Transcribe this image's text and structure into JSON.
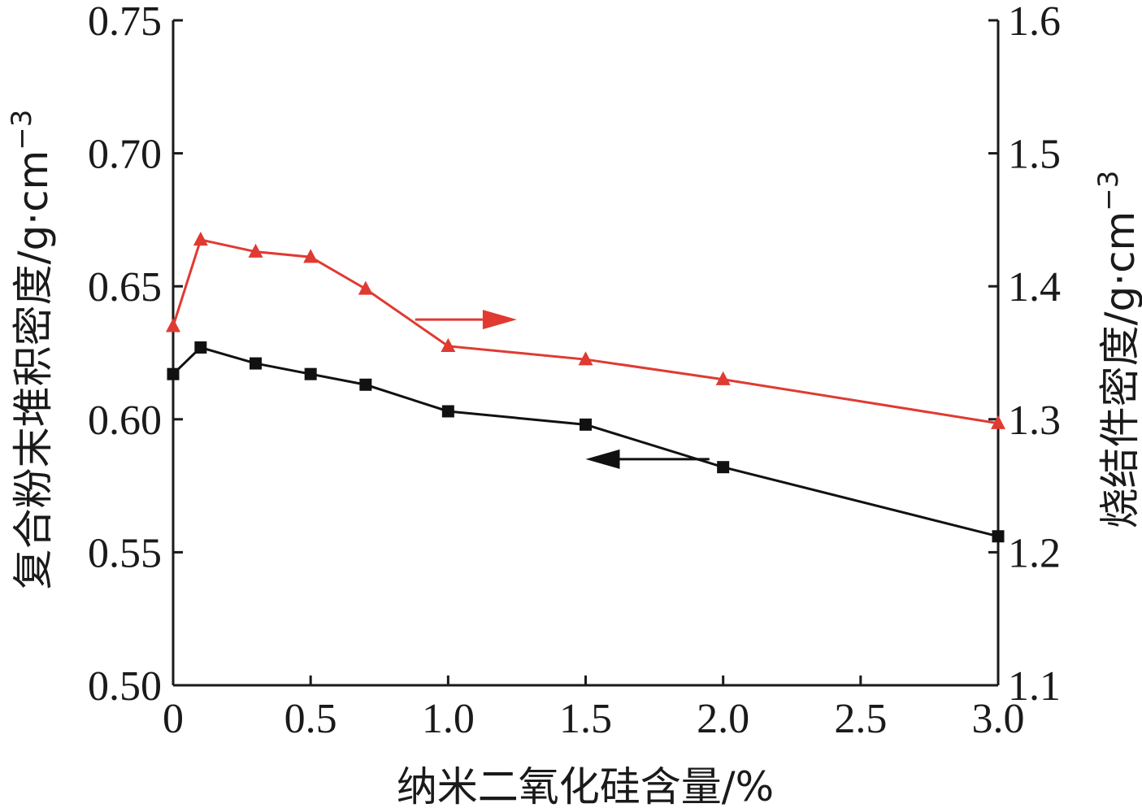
{
  "chart_data": {
    "type": "line",
    "xlabel": "纳米二氧化硅含量/%",
    "ylabel_left": "复合粉末堆积密度/g·cm",
    "ylabel_left_sup": "−3",
    "ylabel_right": "烧结件密度/g·cm",
    "ylabel_right_sup": "−3",
    "xlim": [
      0,
      3.0
    ],
    "ylim_left": [
      0.5,
      0.75
    ],
    "ylim_right": [
      1.1,
      1.6
    ],
    "x_ticks": [
      "0",
      "0.5",
      "1.0",
      "1.5",
      "2.0",
      "2.5",
      "3.0"
    ],
    "y_left_ticks": [
      "0.50",
      "0.55",
      "0.60",
      "0.65",
      "0.70",
      "0.75"
    ],
    "y_right_ticks": [
      "1.1",
      "1.2",
      "1.3",
      "1.4",
      "1.5",
      "1.6"
    ],
    "grid": false,
    "series": [
      {
        "axis": "left",
        "marker": "square",
        "color": "#111111",
        "x": [
          0,
          0.1,
          0.3,
          0.5,
          0.7,
          1.0,
          1.5,
          2.0,
          3.0
        ],
        "values": [
          0.617,
          0.627,
          0.621,
          0.617,
          0.613,
          0.603,
          0.598,
          0.582,
          0.556
        ]
      },
      {
        "axis": "right",
        "marker": "triangle",
        "color": "#e03a32",
        "x": [
          0,
          0.1,
          0.3,
          0.5,
          0.7,
          1.0,
          1.5,
          2.0,
          3.0
        ],
        "values": [
          1.37,
          1.435,
          1.426,
          1.422,
          1.398,
          1.355,
          1.345,
          1.33,
          1.297
        ]
      }
    ],
    "annotations": [
      {
        "type": "arrow",
        "direction": "right",
        "color": "#e03a32",
        "points_to": "right-axis",
        "from": [
          0.88,
          1.375
        ],
        "to": [
          1.25,
          1.375
        ]
      },
      {
        "type": "arrow",
        "direction": "left",
        "color": "#111111",
        "points_to": "left-axis",
        "from": [
          1.95,
          0.585
        ],
        "to": [
          1.5,
          0.585
        ]
      }
    ]
  }
}
